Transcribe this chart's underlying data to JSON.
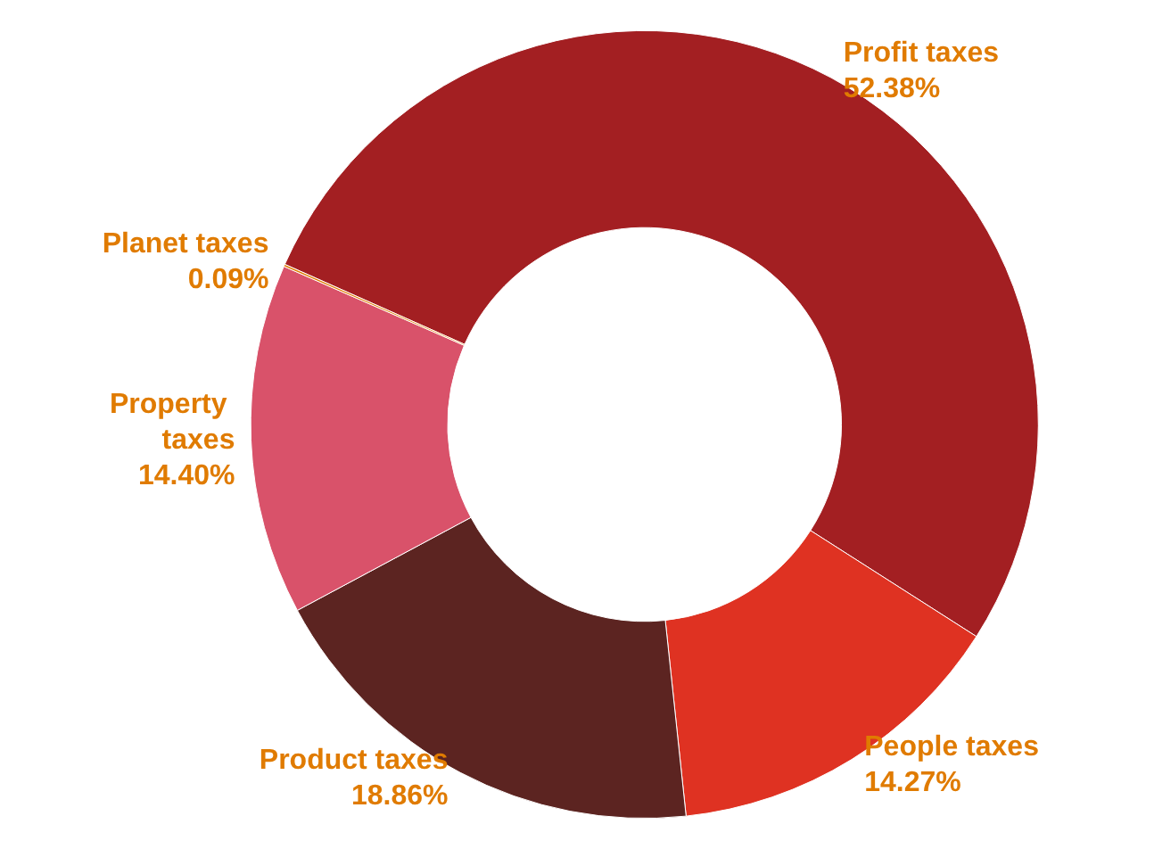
{
  "chart_data": {
    "type": "donut",
    "categories": [
      "Profit taxes",
      "People taxes",
      "Product taxes",
      "Property taxes",
      "Planet taxes"
    ],
    "values": [
      52.38,
      14.27,
      18.86,
      14.4,
      0.09
    ],
    "value_labels": [
      "52.38%",
      "14.27%",
      "18.86%",
      "14.40%",
      "0.09%"
    ],
    "colors": [
      "#a31f22",
      "#df3222",
      "#5c2421",
      "#d9526a",
      "#e07b00"
    ],
    "legend": false
  }
}
